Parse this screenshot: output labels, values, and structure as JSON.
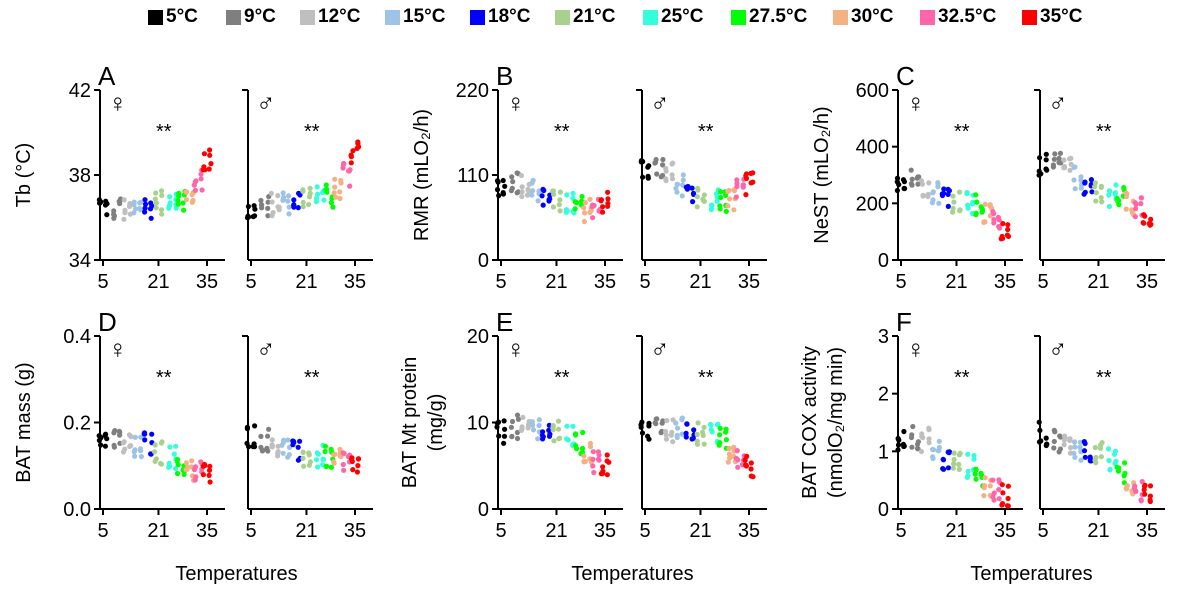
{
  "legend": [
    {
      "label": "5°C",
      "color": "#000000"
    },
    {
      "label": "9°C",
      "color": "#7f7f7f"
    },
    {
      "label": "12°C",
      "color": "#bfbfbf"
    },
    {
      "label": "15°C",
      "color": "#9dc3e6"
    },
    {
      "label": "18°C",
      "color": "#0000ff"
    },
    {
      "label": "21°C",
      "color": "#a9d18e"
    },
    {
      "label": "25°C",
      "color": "#33ffdd"
    },
    {
      "label": "27.5°C",
      "color": "#00ff00"
    },
    {
      "label": "30°C",
      "color": "#f4b183"
    },
    {
      "label": "32.5°C",
      "color": "#ff66aa"
    },
    {
      "label": "35°C",
      "color": "#ff0000"
    }
  ],
  "female_symbol": "♀",
  "male_symbol": "♂",
  "significance": "**",
  "chart_data": [
    {
      "id": "A",
      "type": "scatter",
      "panel_label": "A",
      "ylabel": "Tb (°C)",
      "ylabel_lines": [
        "Tb (°C)"
      ],
      "yticks": [
        "34",
        "38",
        "42"
      ],
      "ylim": [
        34,
        42
      ],
      "xticks": [
        "5",
        "21",
        "35"
      ],
      "xlabel": "Temperatures",
      "x": [
        5,
        9,
        12,
        15,
        18,
        21,
        25,
        27.5,
        30,
        32.5,
        35
      ],
      "series": [
        {
          "sex": "female",
          "values": [
            36.5,
            36.4,
            36.3,
            36.5,
            36.5,
            36.7,
            36.9,
            36.9,
            37.0,
            37.7,
            38.7
          ]
        },
        {
          "sex": "male",
          "values": [
            36.3,
            36.5,
            36.6,
            36.7,
            36.8,
            37.0,
            37.1,
            37.0,
            37.4,
            38.0,
            39.0
          ]
        }
      ]
    },
    {
      "id": "B",
      "type": "scatter",
      "panel_label": "B",
      "ylabel": "RMR (mLO2/h)",
      "ylabel_lines": [
        "RMR (mLO₂/h)"
      ],
      "yticks": [
        "0",
        "110",
        "220"
      ],
      "ylim": [
        0,
        220
      ],
      "xticks": [
        "5",
        "21",
        "35"
      ],
      "xlabel": "Temperatures",
      "x": [
        5,
        9,
        12,
        15,
        18,
        21,
        25,
        27.5,
        30,
        32.5,
        35
      ],
      "series": [
        {
          "sex": "female",
          "values": [
            98,
            102,
            97,
            90,
            82,
            75,
            72,
            68,
            65,
            68,
            75
          ]
        },
        {
          "sex": "male",
          "values": [
            118,
            118,
            112,
            98,
            80,
            78,
            78,
            75,
            78,
            90,
            100
          ]
        }
      ]
    },
    {
      "id": "C",
      "type": "scatter",
      "panel_label": "C",
      "ylabel": "NeST (mLO2/h)",
      "ylabel_lines": [
        "NeST (mLO₂/h)"
      ],
      "yticks": [
        "0",
        "200",
        "400",
        "600"
      ],
      "ylim": [
        0,
        600
      ],
      "xticks": [
        "5",
        "21",
        "35"
      ],
      "xlabel": "Temperatures",
      "x": [
        5,
        9,
        12,
        15,
        18,
        21,
        25,
        27.5,
        30,
        32.5,
        35
      ],
      "series": [
        {
          "sex": "female",
          "values": [
            285,
            285,
            265,
            240,
            230,
            210,
            200,
            190,
            160,
            135,
            115
          ]
        },
        {
          "sex": "male",
          "values": [
            340,
            335,
            320,
            290,
            265,
            245,
            230,
            220,
            200,
            185,
            165
          ]
        }
      ]
    },
    {
      "id": "D",
      "type": "scatter",
      "panel_label": "D",
      "ylabel": "BAT mass (g)",
      "ylabel_lines": [
        "BAT mass (g)"
      ],
      "yticks": [
        "0.0",
        "0.2",
        "0.4"
      ],
      "ylim": [
        0,
        0.4
      ],
      "xticks": [
        "5",
        "21",
        "35"
      ],
      "xlabel": "Temperatures",
      "x": [
        5,
        9,
        12,
        15,
        18,
        21,
        25,
        27.5,
        30,
        32.5,
        35
      ],
      "series": [
        {
          "sex": "female",
          "values": [
            0.16,
            0.155,
            0.15,
            0.14,
            0.15,
            0.13,
            0.12,
            0.1,
            0.09,
            0.085,
            0.08
          ]
        },
        {
          "sex": "male",
          "values": [
            0.17,
            0.16,
            0.15,
            0.14,
            0.13,
            0.12,
            0.12,
            0.12,
            0.11,
            0.11,
            0.1
          ]
        }
      ]
    },
    {
      "id": "E",
      "type": "scatter",
      "panel_label": "E",
      "ylabel": "BAT Mt protein (mg/g)",
      "ylabel_lines": [
        "BAT Mt protein",
        "(mg/g)"
      ],
      "yticks": [
        "0",
        "10",
        "20"
      ],
      "ylim": [
        0,
        20
      ],
      "xticks": [
        "5",
        "21",
        "35"
      ],
      "xlabel": "Temperatures",
      "x": [
        5,
        9,
        12,
        15,
        18,
        21,
        25,
        27.5,
        30,
        32.5,
        35
      ],
      "series": [
        {
          "sex": "female",
          "values": [
            8.8,
            9.5,
            9.2,
            9.5,
            9.0,
            8.8,
            8.3,
            7.5,
            6.5,
            5.5,
            5.0
          ]
        },
        {
          "sex": "male",
          "values": [
            9.0,
            9.5,
            9.0,
            9.5,
            9.2,
            8.8,
            8.5,
            8.0,
            6.5,
            5.5,
            5.0
          ]
        }
      ]
    },
    {
      "id": "F",
      "type": "scatter",
      "panel_label": "F",
      "ylabel": "BAT COX activity (nmolO2/mg min)",
      "ylabel_lines": [
        "BAT COX activity",
        "(nmolO₂/mg min)"
      ],
      "yticks": [
        "0",
        "1",
        "2",
        "3"
      ],
      "ylim": [
        0,
        3
      ],
      "xticks": [
        "5",
        "21",
        "35"
      ],
      "xlabel": "Temperatures",
      "x": [
        5,
        9,
        12,
        15,
        18,
        21,
        25,
        27.5,
        30,
        32.5,
        35
      ],
      "series": [
        {
          "sex": "female",
          "values": [
            1.2,
            1.25,
            1.2,
            1.0,
            0.85,
            0.8,
            0.75,
            0.6,
            0.4,
            0.3,
            0.25
          ]
        },
        {
          "sex": "male",
          "values": [
            1.3,
            1.2,
            1.1,
            1.05,
            1.0,
            0.95,
            0.85,
            0.6,
            0.45,
            0.35,
            0.3
          ]
        }
      ]
    }
  ]
}
